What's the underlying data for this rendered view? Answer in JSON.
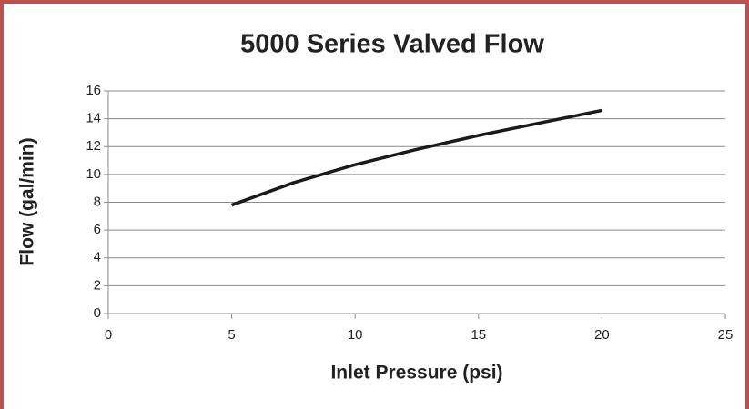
{
  "chart_data": {
    "type": "line",
    "title": "5000 Series Valved Flow",
    "x_label": "Inlet Pressure (psi)",
    "y_label": "Flow (gal/min)",
    "x": [
      5,
      7.5,
      10,
      12.5,
      15,
      17.5,
      20
    ],
    "series": [
      {
        "name": "Flow",
        "color": "#1a1a1a",
        "values": [
          7.8,
          9.4,
          10.7,
          11.8,
          12.8,
          13.7,
          14.6
        ]
      }
    ],
    "xlim": [
      0,
      25
    ],
    "xticks": [
      0,
      5,
      10,
      15,
      20,
      25
    ],
    "ylim": [
      0,
      16
    ],
    "yticks": [
      0,
      2,
      4,
      6,
      8,
      10,
      12,
      14,
      16
    ],
    "grid": true
  }
}
